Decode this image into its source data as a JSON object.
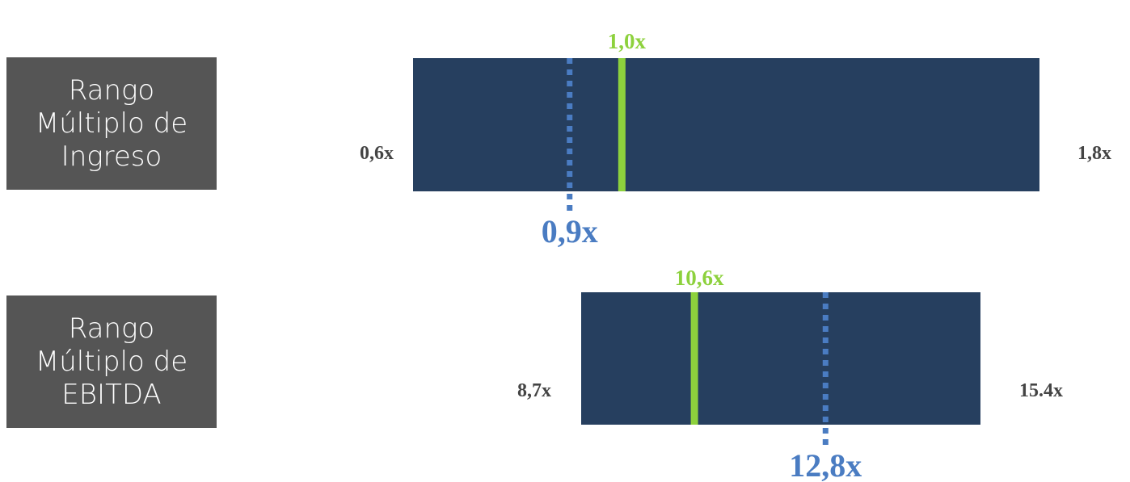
{
  "chart_data": [
    {
      "type": "bar",
      "orientation": "horizontal-range",
      "row_label_lines": [
        "Rango",
        "Múltiplo de",
        "Ingreso"
      ],
      "range": {
        "min": 0.6,
        "max": 1.8,
        "min_label": "0,6x",
        "max_label": "1,8x"
      },
      "actual": {
        "value": 1.0,
        "label": "1,0x"
      },
      "median": {
        "value": 0.9,
        "label": "0,9x"
      }
    },
    {
      "type": "bar",
      "orientation": "horizontal-range",
      "row_label_lines": [
        "Rango",
        "Múltiplo de",
        "EBITDA"
      ],
      "range": {
        "min": 8.7,
        "max": 15.4,
        "min_label": "8,7x",
        "max_label": "15.4x"
      },
      "actual": {
        "value": 10.6,
        "label": "10,6x"
      },
      "median": {
        "value": 12.8,
        "label": "12,8x"
      }
    }
  ],
  "colors": {
    "bar": "#263f5f",
    "actual": "#8dd13d",
    "median": "#4a7cc2",
    "row_label_bg": "#555555",
    "end_label": "#444444"
  }
}
